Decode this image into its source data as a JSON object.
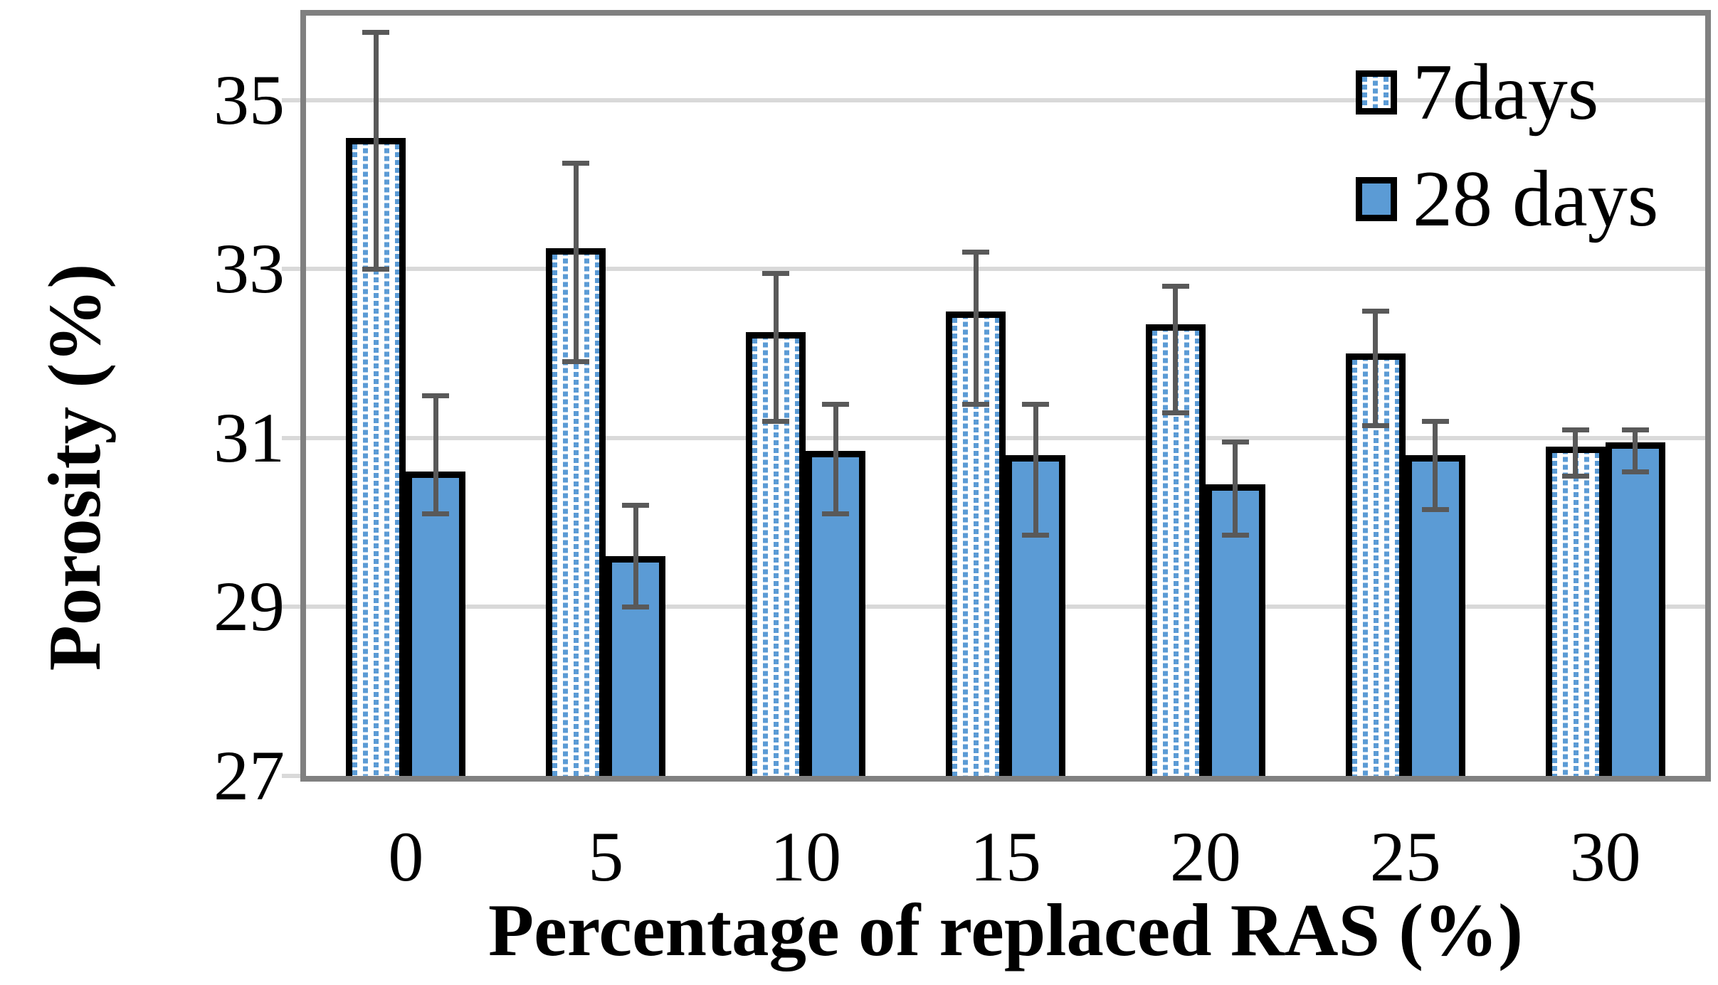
{
  "chart_data": {
    "type": "bar",
    "title": "",
    "xlabel": "Percentage of replaced RAS (%)",
    "ylabel": "Porosity (%)",
    "categories": [
      "0",
      "5",
      "10",
      "15",
      "20",
      "25",
      "30"
    ],
    "ylim": [
      27,
      36
    ],
    "y_ticks": [
      27,
      29,
      31,
      33,
      35
    ],
    "grid": true,
    "legend_position": "top-right-inside",
    "series": [
      {
        "name": "7days",
        "style": "dotted",
        "values": [
          34.55,
          33.25,
          32.25,
          32.5,
          32.35,
          32.0,
          30.9
        ],
        "err_high": [
          35.8,
          34.25,
          32.95,
          33.2,
          32.8,
          32.5,
          31.1
        ],
        "err_low": [
          33.0,
          31.9,
          31.2,
          31.4,
          31.3,
          31.15,
          30.55
        ]
      },
      {
        "name": "28 days",
        "style": "solid",
        "values": [
          30.6,
          29.6,
          30.85,
          30.8,
          30.45,
          30.8,
          30.95
        ],
        "err_high": [
          31.5,
          30.2,
          31.4,
          31.4,
          30.95,
          31.2,
          31.1
        ],
        "err_low": [
          30.1,
          29.0,
          30.1,
          29.85,
          29.85,
          30.15,
          30.6
        ]
      }
    ],
    "colors": {
      "bar_fill": "#5B9BD5",
      "bar_border": "#000000",
      "error_bar": "#595959",
      "gridline": "#D9D9D9",
      "axis_border": "#808080",
      "text": "#000000",
      "background": "#FFFFFF"
    }
  }
}
